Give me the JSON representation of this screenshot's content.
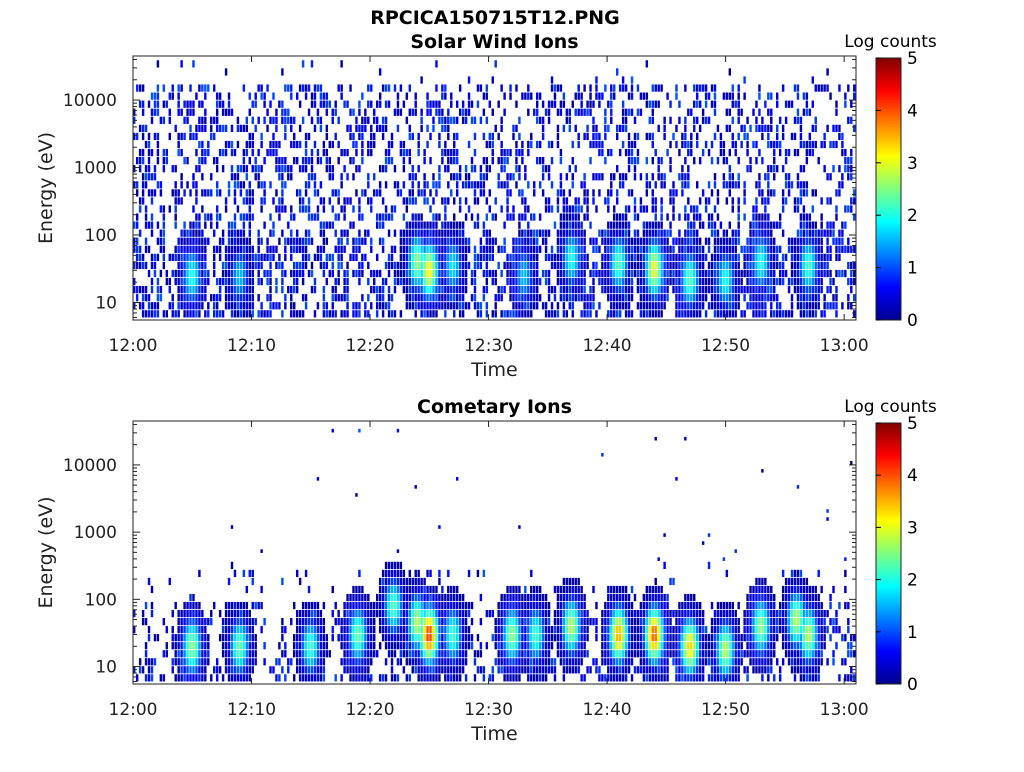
{
  "file_title": "RPCICA150715T12.PNG",
  "colors": {
    "colormap": [
      "#00008f",
      "#0000ff",
      "#0080ff",
      "#00ffff",
      "#80ff80",
      "#ffff00",
      "#ff8000",
      "#ff0000",
      "#800000"
    ],
    "axis": "#222222",
    "background": "#ffffff"
  },
  "chart_data": [
    {
      "type": "heatmap",
      "title": "Solar Wind Ions",
      "xlabel": "Time",
      "ylabel": "Energy (eV)",
      "x_ticks": [
        "12:00",
        "12:10",
        "12:20",
        "12:30",
        "12:40",
        "12:50",
        "13:00"
      ],
      "x_range": [
        "12:00",
        "13:01"
      ],
      "y_scale": "log",
      "y_ticks": [
        10,
        100,
        1000,
        10000
      ],
      "y_tick_labels": [
        "10",
        "100",
        "1000",
        "10000"
      ],
      "y_range": [
        5.5,
        45000
      ],
      "colorbar": {
        "label": "Log counts",
        "range": [
          0,
          5
        ],
        "ticks": [
          "0",
          "1",
          "2",
          "3",
          "4",
          "5"
        ]
      },
      "background_counts": "sparse 0-1 log counts scattered across 8-15000 eV, denser below 100 eV",
      "peaks": [
        {
          "time": "12:05",
          "energy_ev": 25,
          "log_counts": 2.0
        },
        {
          "time": "12:09",
          "energy_ev": 25,
          "log_counts": 1.6
        },
        {
          "time": "12:24",
          "energy_ev": 40,
          "log_counts": 2.6
        },
        {
          "time": "12:25",
          "energy_ev": 30,
          "log_counts": 3.2
        },
        {
          "time": "12:27",
          "energy_ev": 35,
          "log_counts": 1.8
        },
        {
          "time": "12:33",
          "energy_ev": 25,
          "log_counts": 1.6
        },
        {
          "time": "12:37",
          "energy_ev": 45,
          "log_counts": 2.0
        },
        {
          "time": "12:41",
          "energy_ev": 38,
          "log_counts": 2.3
        },
        {
          "time": "12:44",
          "energy_ev": 32,
          "log_counts": 3.1
        },
        {
          "time": "12:47",
          "energy_ev": 22,
          "log_counts": 2.3
        },
        {
          "time": "12:50",
          "energy_ev": 22,
          "log_counts": 2.0
        },
        {
          "time": "12:53",
          "energy_ev": 40,
          "log_counts": 2.0
        },
        {
          "time": "12:57",
          "energy_ev": 35,
          "log_counts": 2.2
        }
      ]
    },
    {
      "type": "heatmap",
      "title": "Cometary Ions",
      "xlabel": "Time",
      "ylabel": "Energy (eV)",
      "x_ticks": [
        "12:00",
        "12:10",
        "12:20",
        "12:30",
        "12:40",
        "12:50",
        "13:00"
      ],
      "x_range": [
        "12:00",
        "13:01"
      ],
      "y_scale": "log",
      "y_ticks": [
        10,
        100,
        1000,
        10000
      ],
      "y_tick_labels": [
        "10",
        "100",
        "1000",
        "10000"
      ],
      "y_range": [
        5.5,
        45000
      ],
      "colorbar": {
        "label": "Log counts",
        "range": [
          0,
          5
        ],
        "ticks": [
          "0",
          "1",
          "2",
          "3",
          "4",
          "5"
        ]
      },
      "background_counts": "scattered 0-1 log counts mostly below 300 eV, a few isolated pixels up to 17000 eV",
      "peaks": [
        {
          "time": "12:05",
          "energy_ev": 20,
          "log_counts": 2.6
        },
        {
          "time": "12:09",
          "energy_ev": 20,
          "log_counts": 2.4
        },
        {
          "time": "12:15",
          "energy_ev": 20,
          "log_counts": 2.2
        },
        {
          "time": "12:19",
          "energy_ev": 30,
          "log_counts": 2.4
        },
        {
          "time": "12:22",
          "energy_ev": 80,
          "log_counts": 2.3
        },
        {
          "time": "12:24",
          "energy_ev": 45,
          "log_counts": 2.8
        },
        {
          "time": "12:25",
          "energy_ev": 30,
          "log_counts": 4.2
        },
        {
          "time": "12:27",
          "energy_ev": 30,
          "log_counts": 2.2
        },
        {
          "time": "12:32",
          "energy_ev": 30,
          "log_counts": 2.6
        },
        {
          "time": "12:34",
          "energy_ev": 30,
          "log_counts": 2.2
        },
        {
          "time": "12:37",
          "energy_ev": 40,
          "log_counts": 2.8
        },
        {
          "time": "12:41",
          "energy_ev": 30,
          "log_counts": 3.6
        },
        {
          "time": "12:44",
          "energy_ev": 30,
          "log_counts": 4.0
        },
        {
          "time": "12:47",
          "energy_ev": 20,
          "log_counts": 3.4
        },
        {
          "time": "12:50",
          "energy_ev": 18,
          "log_counts": 2.8
        },
        {
          "time": "12:53",
          "energy_ev": 40,
          "log_counts": 2.6
        },
        {
          "time": "12:56",
          "energy_ev": 50,
          "log_counts": 2.8
        },
        {
          "time": "12:57",
          "energy_ev": 30,
          "log_counts": 2.8
        }
      ]
    }
  ]
}
